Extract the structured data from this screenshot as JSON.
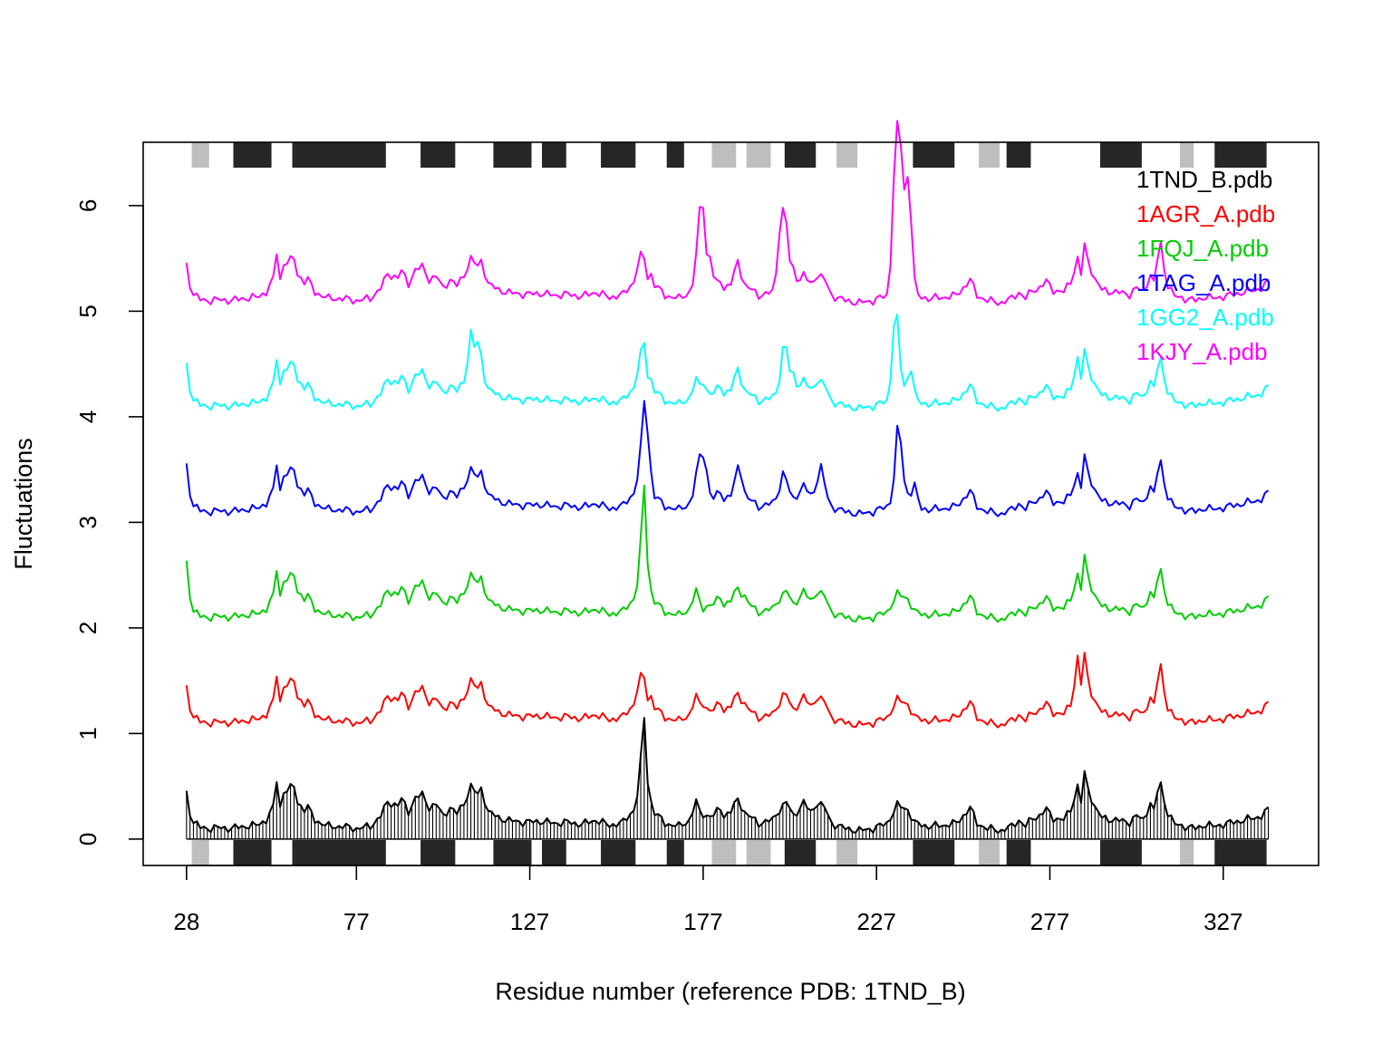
{
  "chart_data": {
    "type": "line",
    "title": "",
    "xlabel": "Residue number (reference PDB: 1TND_B)",
    "ylabel": "Fluctuations",
    "xlim": [
      15.5,
      354.5
    ],
    "ylim": [
      -0.25,
      6.6
    ],
    "x_ticks": [
      28,
      77,
      127,
      177,
      227,
      277,
      327
    ],
    "x_tick_labels": [
      "28",
      "77",
      "127",
      "177",
      "227",
      "277",
      "327"
    ],
    "y_ticks": [
      0,
      1,
      2,
      3,
      4,
      5,
      6
    ],
    "y_tick_labels": [
      "0",
      "1",
      "2",
      "3",
      "4",
      "5",
      "6"
    ],
    "legend_position": "top-right",
    "series_style": "each series is the base fluctuation profile plus a vertical offset; the first series is drawn as a filled spike (hist) plot",
    "residue_range": [
      28,
      340
    ],
    "sse_blocks": [
      {
        "type": "strand",
        "color": "#bebebe",
        "start": 30,
        "end": 34
      },
      {
        "type": "helix",
        "color": "#262626",
        "start": 42,
        "end": 52
      },
      {
        "type": "helix",
        "color": "#262626",
        "start": 59,
        "end": 85
      },
      {
        "type": "helix",
        "color": "#262626",
        "start": 96,
        "end": 105
      },
      {
        "type": "helix",
        "color": "#262626",
        "start": 117,
        "end": 127
      },
      {
        "type": "helix",
        "color": "#262626",
        "start": 131,
        "end": 137
      },
      {
        "type": "helix",
        "color": "#262626",
        "start": 148,
        "end": 157
      },
      {
        "type": "helix",
        "color": "#262626",
        "start": 167,
        "end": 171
      },
      {
        "type": "strand",
        "color": "#bebebe",
        "start": 180,
        "end": 186
      },
      {
        "type": "strand",
        "color": "#bebebe",
        "start": 190,
        "end": 196
      },
      {
        "type": "helix",
        "color": "#262626",
        "start": 201,
        "end": 209
      },
      {
        "type": "strand",
        "color": "#bebebe",
        "start": 216,
        "end": 221
      },
      {
        "type": "helix",
        "color": "#262626",
        "start": 238,
        "end": 249
      },
      {
        "type": "strand",
        "color": "#bebebe",
        "start": 257,
        "end": 262
      },
      {
        "type": "helix",
        "color": "#262626",
        "start": 265,
        "end": 271
      },
      {
        "type": "helix",
        "color": "#262626",
        "start": 292,
        "end": 303
      },
      {
        "type": "strand",
        "color": "#bebebe",
        "start": 315,
        "end": 318
      },
      {
        "type": "helix",
        "color": "#262626",
        "start": 325,
        "end": 339
      }
    ],
    "base_profile_anchors": [
      [
        28,
        0.44
      ],
      [
        29,
        0.25
      ],
      [
        30,
        0.16
      ],
      [
        32,
        0.11
      ],
      [
        35,
        0.1
      ],
      [
        38,
        0.11
      ],
      [
        41,
        0.1
      ],
      [
        44,
        0.12
      ],
      [
        48,
        0.13
      ],
      [
        51,
        0.18
      ],
      [
        53,
        0.3
      ],
      [
        54,
        0.56
      ],
      [
        55,
        0.3
      ],
      [
        56,
        0.45
      ],
      [
        58,
        0.48
      ],
      [
        59,
        0.5
      ],
      [
        60,
        0.35
      ],
      [
        62,
        0.28
      ],
      [
        63,
        0.3
      ],
      [
        65,
        0.18
      ],
      [
        69,
        0.12
      ],
      [
        73,
        0.12
      ],
      [
        77,
        0.1
      ],
      [
        81,
        0.12
      ],
      [
        84,
        0.22
      ],
      [
        86,
        0.35
      ],
      [
        89,
        0.32
      ],
      [
        90,
        0.38
      ],
      [
        92,
        0.26
      ],
      [
        94,
        0.39
      ],
      [
        96,
        0.42
      ],
      [
        98,
        0.3
      ],
      [
        100,
        0.33
      ],
      [
        102,
        0.22
      ],
      [
        104,
        0.3
      ],
      [
        106,
        0.24
      ],
      [
        108,
        0.34
      ],
      [
        110,
        0.5
      ],
      [
        112,
        0.42
      ],
      [
        113,
        0.48
      ],
      [
        115,
        0.26
      ],
      [
        118,
        0.2
      ],
      [
        122,
        0.17
      ],
      [
        126,
        0.16
      ],
      [
        130,
        0.17
      ],
      [
        134,
        0.15
      ],
      [
        138,
        0.16
      ],
      [
        142,
        0.14
      ],
      [
        146,
        0.18
      ],
      [
        150,
        0.13
      ],
      [
        154,
        0.16
      ],
      [
        157,
        0.28
      ],
      [
        158,
        0.42
      ],
      [
        159,
        0.75
      ],
      [
        160,
        1.15
      ],
      [
        161,
        0.55
      ],
      [
        162,
        0.35
      ],
      [
        163,
        0.25
      ],
      [
        166,
        0.15
      ],
      [
        170,
        0.12
      ],
      [
        173,
        0.18
      ],
      [
        175,
        0.35
      ],
      [
        176,
        0.26
      ],
      [
        178,
        0.22
      ],
      [
        180,
        0.22
      ],
      [
        182,
        0.3
      ],
      [
        183,
        0.22
      ],
      [
        185,
        0.26
      ],
      [
        187,
        0.38
      ],
      [
        189,
        0.25
      ],
      [
        193,
        0.15
      ],
      [
        197,
        0.18
      ],
      [
        199,
        0.28
      ],
      [
        201,
        0.35
      ],
      [
        203,
        0.22
      ],
      [
        205,
        0.3
      ],
      [
        206,
        0.35
      ],
      [
        208,
        0.25
      ],
      [
        210,
        0.35
      ],
      [
        212,
        0.3
      ],
      [
        214,
        0.15
      ],
      [
        218,
        0.1
      ],
      [
        222,
        0.08
      ],
      [
        226,
        0.1
      ],
      [
        230,
        0.15
      ],
      [
        233,
        0.32
      ],
      [
        236,
        0.28
      ],
      [
        238,
        0.15
      ],
      [
        242,
        0.12
      ],
      [
        246,
        0.13
      ],
      [
        250,
        0.15
      ],
      [
        252,
        0.22
      ],
      [
        254,
        0.3
      ],
      [
        256,
        0.15
      ],
      [
        259,
        0.1
      ],
      [
        263,
        0.08
      ],
      [
        266,
        0.12
      ],
      [
        268,
        0.18
      ],
      [
        270,
        0.12
      ],
      [
        272,
        0.2
      ],
      [
        274,
        0.22
      ],
      [
        276,
        0.28
      ],
      [
        278,
        0.2
      ],
      [
        281,
        0.18
      ],
      [
        283,
        0.28
      ],
      [
        285,
        0.5
      ],
      [
        286,
        0.35
      ],
      [
        287,
        0.62
      ],
      [
        288,
        0.48
      ],
      [
        290,
        0.3
      ],
      [
        292,
        0.2
      ],
      [
        296,
        0.18
      ],
      [
        300,
        0.16
      ],
      [
        302,
        0.22
      ],
      [
        304,
        0.18
      ],
      [
        306,
        0.35
      ],
      [
        307,
        0.26
      ],
      [
        308,
        0.45
      ],
      [
        309,
        0.52
      ],
      [
        310,
        0.36
      ],
      [
        311,
        0.25
      ],
      [
        313,
        0.14
      ],
      [
        316,
        0.12
      ],
      [
        319,
        0.1
      ],
      [
        322,
        0.14
      ],
      [
        324,
        0.12
      ],
      [
        327,
        0.14
      ],
      [
        330,
        0.16
      ],
      [
        333,
        0.18
      ],
      [
        336,
        0.2
      ],
      [
        338,
        0.22
      ],
      [
        340,
        0.28
      ]
    ],
    "series": [
      {
        "name": "1TND_B.pdb",
        "color": "#000000",
        "offset": 0.0,
        "style": "filled-spikes",
        "bumps": []
      },
      {
        "name": "1AGR_A.pdb",
        "color": "#ff0000",
        "offset": 1.0,
        "style": "line",
        "bumps": [
          [
            160,
            -0.62
          ],
          [
            177,
            0.05
          ],
          [
            189,
            0.03
          ],
          [
            200,
            0.05
          ],
          [
            285,
            0.22
          ],
          [
            287,
            0.12
          ],
          [
            309,
            0.12
          ]
        ]
      },
      {
        "name": "1FQJ_A.pdb",
        "color": "#00cd00",
        "offset": 2.0,
        "style": "line",
        "bumps": [
          [
            28,
            0.18
          ],
          [
            160,
            0.2
          ],
          [
            177,
            -0.05
          ],
          [
            189,
            0.05
          ],
          [
            287,
            0.05
          ],
          [
            309,
            0.02
          ]
        ]
      },
      {
        "name": "1TAG_A.pdb",
        "color": "#0000ff",
        "offset": 3.0,
        "style": "line",
        "bumps": [
          [
            28,
            0.1
          ],
          [
            160,
            -0.12
          ],
          [
            161,
            0.35
          ],
          [
            176,
            0.28
          ],
          [
            177,
            0.25
          ],
          [
            178,
            0.18
          ],
          [
            187,
            0.12
          ],
          [
            188,
            0.1
          ],
          [
            200,
            0.15
          ],
          [
            211,
            0.2
          ],
          [
            233,
            0.45
          ],
          [
            234,
            0.3
          ],
          [
            238,
            0.2
          ],
          [
            285,
            -0.05
          ],
          [
            309,
            0.05
          ]
        ]
      },
      {
        "name": "1GG2_A.pdb",
        "color": "#00ffff",
        "offset": 4.0,
        "style": "line",
        "bumps": [
          [
            28,
            0.05
          ],
          [
            110,
            0.3
          ],
          [
            112,
            0.28
          ],
          [
            160,
            -0.45
          ],
          [
            177,
            0.1
          ],
          [
            187,
            0.08
          ],
          [
            200,
            0.25
          ],
          [
            201,
            0.22
          ],
          [
            203,
            0.18
          ],
          [
            232,
            0.45
          ],
          [
            233,
            0.45
          ],
          [
            237,
            0.25
          ],
          [
            285,
            0.05
          ],
          [
            309,
            0.02
          ]
        ]
      },
      {
        "name": "1KJY_A.pdb",
        "color": "#ff00ff",
        "offset": 5.0,
        "style": "line",
        "bumps": [
          [
            160,
            -0.65
          ],
          [
            176,
            0.5
          ],
          [
            177,
            0.6
          ],
          [
            179,
            0.3
          ],
          [
            187,
            0.1
          ],
          [
            199,
            0.35
          ],
          [
            200,
            0.4
          ],
          [
            201,
            0.35
          ],
          [
            203,
            0.18
          ],
          [
            232,
            0.7
          ],
          [
            233,
            0.9
          ],
          [
            234,
            0.85
          ],
          [
            235,
            0.3
          ],
          [
            236,
            0.75
          ],
          [
            237,
            0.4
          ],
          [
            285,
            0.0
          ],
          [
            287,
            0.0
          ],
          [
            309,
            0.12
          ]
        ]
      }
    ]
  }
}
